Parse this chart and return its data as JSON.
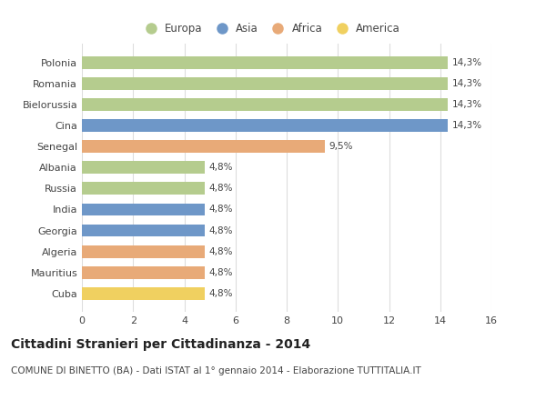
{
  "countries": [
    "Polonia",
    "Romania",
    "Bielorussia",
    "Cina",
    "Senegal",
    "Albania",
    "Russia",
    "India",
    "Georgia",
    "Algeria",
    "Mauritius",
    "Cuba"
  ],
  "values": [
    14.3,
    14.3,
    14.3,
    14.3,
    9.5,
    4.8,
    4.8,
    4.8,
    4.8,
    4.8,
    4.8,
    4.8
  ],
  "labels": [
    "14,3%",
    "14,3%",
    "14,3%",
    "14,3%",
    "9,5%",
    "4,8%",
    "4,8%",
    "4,8%",
    "4,8%",
    "4,8%",
    "4,8%",
    "4,8%"
  ],
  "categories": [
    "Europa",
    "Asia",
    "Africa",
    "America"
  ],
  "colors": {
    "Polonia": "#b5cc8e",
    "Romania": "#b5cc8e",
    "Bielorussia": "#b5cc8e",
    "Cina": "#6e97c8",
    "Senegal": "#e8aa78",
    "Albania": "#b5cc8e",
    "Russia": "#b5cc8e",
    "India": "#6e97c8",
    "Georgia": "#6e97c8",
    "Algeria": "#e8aa78",
    "Mauritius": "#e8aa78",
    "Cuba": "#f0d060"
  },
  "legend_colors": {
    "Europa": "#b5cc8e",
    "Asia": "#6e97c8",
    "Africa": "#e8aa78",
    "America": "#f0d060"
  },
  "xlim": [
    0,
    16
  ],
  "xticks": [
    0,
    2,
    4,
    6,
    8,
    10,
    12,
    14,
    16
  ],
  "title": "Cittadini Stranieri per Cittadinanza - 2014",
  "subtitle": "COMUNE DI BINETTO (BA) - Dati ISTAT al 1° gennaio 2014 - Elaborazione TUTTITALIA.IT",
  "background_color": "#ffffff",
  "bar_height": 0.6,
  "grid_color": "#dddddd",
  "text_color": "#444444",
  "title_fontsize": 10,
  "subtitle_fontsize": 7.5,
  "label_fontsize": 7.5,
  "tick_fontsize": 8,
  "legend_fontsize": 8.5
}
